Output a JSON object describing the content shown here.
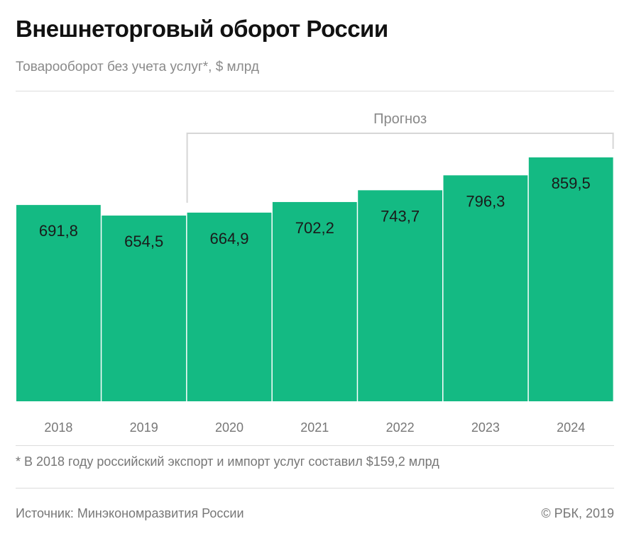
{
  "title": "Внешнеторговый оборот России",
  "subtitle": "Товарооборот без учета услуг*, $ млрд",
  "footnote": "* В 2018 году российский экспорт и импорт услуг составил $159,2 млрд",
  "source": "Источник: Минэкономразвития России",
  "copyright": "© РБК, 2019",
  "colors": {
    "bar": "#14ba83",
    "bracket": "#d6d6d6",
    "label": "#1a1a1a"
  },
  "chart_data": {
    "type": "bar",
    "categories": [
      "2018",
      "2019",
      "2020",
      "2021",
      "2022",
      "2023",
      "2024"
    ],
    "values": [
      691.8,
      654.5,
      664.9,
      702.2,
      743.7,
      796.3,
      859.5
    ],
    "value_labels": [
      "691,8",
      "654,5",
      "664,9",
      "702,2",
      "743,7",
      "796,3",
      "859,5"
    ],
    "ylim": [
      0,
      860
    ],
    "grid": false,
    "annotation": {
      "text": "Прогноз",
      "from": "2020",
      "to": "2024"
    }
  }
}
